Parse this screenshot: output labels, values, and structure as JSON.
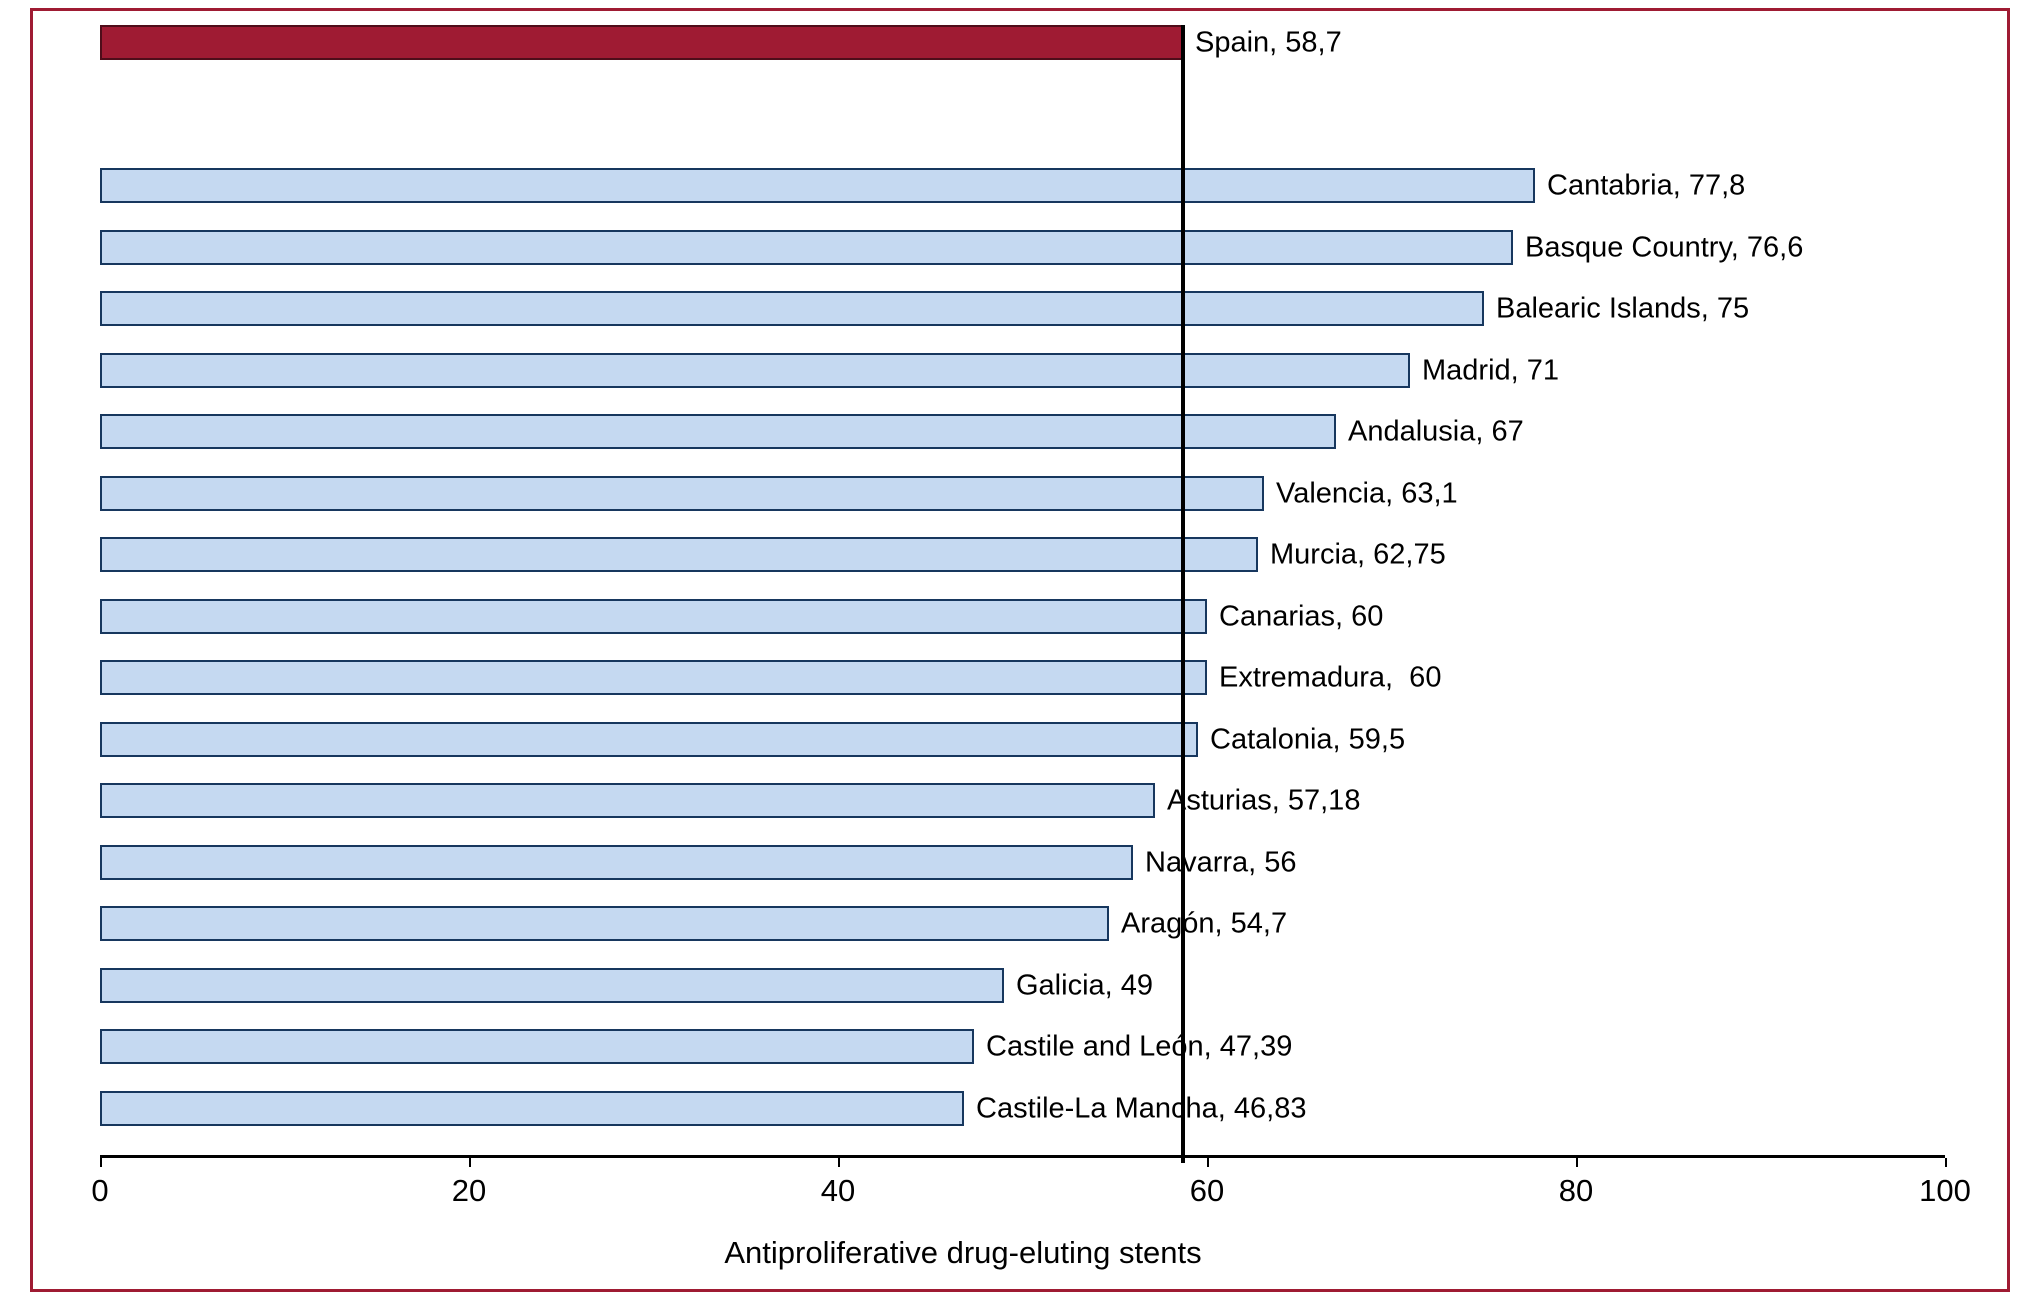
{
  "chart_data": {
    "type": "bar",
    "orientation": "horizontal",
    "xlabel": "Antiproliferative drug-eluting stents",
    "xlim": [
      0,
      100
    ],
    "x_ticks": [
      "0",
      "20",
      "40",
      "60",
      "80",
      "100"
    ],
    "x_tick_values": [
      0,
      20,
      40,
      60,
      80,
      100
    ],
    "grid": false,
    "legend": "none",
    "reference_line": {
      "value": 58.7,
      "color": "#000000"
    },
    "colors": {
      "highlight_bar": "#9f1b33",
      "highlight_border": "#4f0d1a",
      "bar_fill": "#c5d9f1",
      "bar_border": "#17375e",
      "frame_border": "#9f1b33",
      "axis": "#000000"
    },
    "bars": [
      {
        "name": "Spain",
        "value": 58.7,
        "label": "Spain, 58,7",
        "highlight": true
      },
      {
        "name": "Cantabria",
        "value": 77.8,
        "label": "Cantabria, 77,8",
        "highlight": false
      },
      {
        "name": "Basque Country",
        "value": 76.6,
        "label": "Basque Country, 76,6",
        "highlight": false
      },
      {
        "name": "Balearic Islands",
        "value": 75,
        "label": "Balearic Islands, 75",
        "highlight": false
      },
      {
        "name": "Madrid",
        "value": 71,
        "label": "Madrid, 71",
        "highlight": false
      },
      {
        "name": "Andalusia",
        "value": 67,
        "label": "Andalusia, 67",
        "highlight": false
      },
      {
        "name": "Valencia",
        "value": 63.1,
        "label": "Valencia, 63,1",
        "highlight": false
      },
      {
        "name": "Murcia",
        "value": 62.75,
        "label": "Murcia, 62,75",
        "highlight": false
      },
      {
        "name": "Canarias",
        "value": 60,
        "label": "Canarias, 60",
        "highlight": false
      },
      {
        "name": "Extremadura",
        "value": 60,
        "label": "Extremadura,  60",
        "highlight": false
      },
      {
        "name": "Catalonia",
        "value": 59.5,
        "label": "Catalonia, 59,5",
        "highlight": false
      },
      {
        "name": "Asturias",
        "value": 57.18,
        "label": "Asturias, 57,18",
        "highlight": false
      },
      {
        "name": "Navarra",
        "value": 56,
        "label": "Navarra, 56",
        "highlight": false
      },
      {
        "name": "Aragón",
        "value": 54.7,
        "label": "Aragón, 54,7",
        "highlight": false
      },
      {
        "name": "Galicia",
        "value": 49,
        "label": "Galicia, 49",
        "highlight": false
      },
      {
        "name": "Castile and León",
        "value": 47.39,
        "label": "Castile and León, 47,39",
        "highlight": false
      },
      {
        "name": "Castile-La Mancha",
        "value": 46.83,
        "label": "Castile-La Mancha, 46,83",
        "highlight": false
      }
    ]
  }
}
